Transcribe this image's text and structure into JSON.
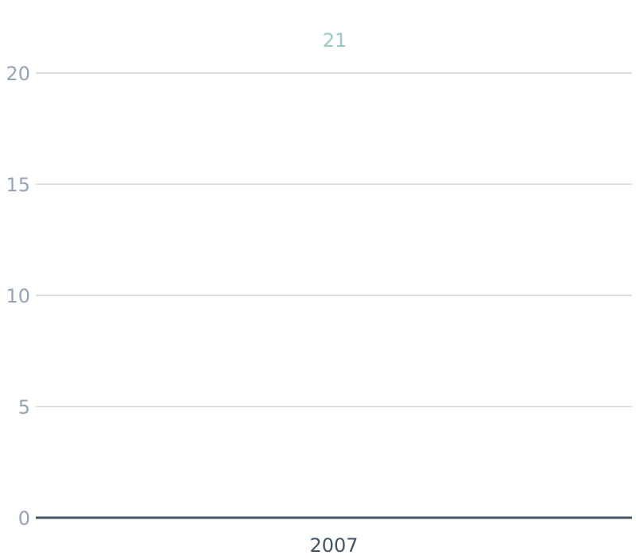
{
  "chart_data": {
    "type": "line",
    "categories": [
      "2007"
    ],
    "series": [
      {
        "values": [
          21
        ]
      }
    ],
    "data_labels": [
      "21"
    ],
    "ylim": [
      0,
      20
    ],
    "yticks": [
      0,
      5,
      10,
      15,
      20
    ],
    "ytick_labels": [
      "0",
      "5",
      "10",
      "15",
      "20"
    ],
    "xtick_labels": [
      "2007"
    ],
    "grid": true,
    "title": "",
    "xlabel": "",
    "ylabel": ""
  },
  "colors": {
    "data_label": "#93cbc6",
    "y_tick_label": "#94a3b8",
    "x_tick_label": "#425466",
    "grid": "#b5b8bc",
    "baseline": "#425466"
  }
}
